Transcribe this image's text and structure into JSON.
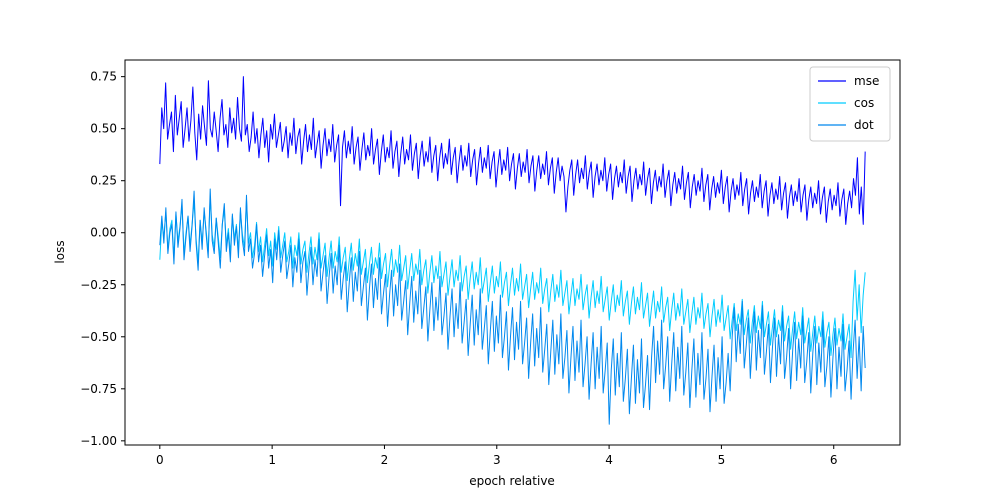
{
  "chart_data": {
    "type": "line",
    "title": "",
    "xlabel": "epoch relative",
    "ylabel": "loss",
    "xlim": [
      -0.31,
      6.59
    ],
    "ylim": [
      -1.02,
      0.83
    ],
    "x_ticks": [
      0,
      1,
      2,
      3,
      4,
      5,
      6
    ],
    "x_tick_labels": [
      "0",
      "1",
      "2",
      "3",
      "4",
      "5",
      "6"
    ],
    "y_ticks": [
      -1.0,
      -0.75,
      -0.5,
      -0.25,
      0.0,
      0.25,
      0.5,
      0.75
    ],
    "y_tick_labels": [
      "−1.00",
      "−0.75",
      "−0.50",
      "−0.25",
      "0.00",
      "0.25",
      "0.50",
      "0.75"
    ],
    "grid": false,
    "legend_position": "top-right",
    "x_range": [
      0,
      6.28
    ],
    "series": [
      {
        "name": "mse",
        "color": "#0000ff",
        "values": [
          0.33,
          0.6,
          0.5,
          0.72,
          0.45,
          0.52,
          0.58,
          0.39,
          0.66,
          0.47,
          0.55,
          0.63,
          0.41,
          0.5,
          0.6,
          0.44,
          0.54,
          0.7,
          0.48,
          0.35,
          0.57,
          0.45,
          0.61,
          0.51,
          0.42,
          0.73,
          0.5,
          0.46,
          0.58,
          0.49,
          0.39,
          0.55,
          0.64,
          0.47,
          0.52,
          0.41,
          0.6,
          0.48,
          0.55,
          0.45,
          0.65,
          0.5,
          0.44,
          0.75,
          0.47,
          0.52,
          0.39,
          0.46,
          0.58,
          0.43,
          0.5,
          0.36,
          0.47,
          0.55,
          0.41,
          0.49,
          0.34,
          0.52,
          0.45,
          0.57,
          0.41,
          0.47,
          0.53,
          0.39,
          0.44,
          0.51,
          0.36,
          0.48,
          0.42,
          0.55,
          0.38,
          0.46,
          0.5,
          0.33,
          0.44,
          0.52,
          0.39,
          0.47,
          0.4,
          0.55,
          0.36,
          0.43,
          0.49,
          0.31,
          0.42,
          0.5,
          0.37,
          0.45,
          0.39,
          0.52,
          0.34,
          0.42,
          0.47,
          0.13,
          0.41,
          0.49,
          0.36,
          0.44,
          0.38,
          0.51,
          0.33,
          0.41,
          0.46,
          0.3,
          0.4,
          0.48,
          0.35,
          0.42,
          0.37,
          0.5,
          0.33,
          0.4,
          0.45,
          0.28,
          0.39,
          0.47,
          0.34,
          0.41,
          0.36,
          0.49,
          0.31,
          0.39,
          0.44,
          0.27,
          0.38,
          0.46,
          0.33,
          0.4,
          0.35,
          0.47,
          0.3,
          0.38,
          0.43,
          0.26,
          0.37,
          0.44,
          0.32,
          0.39,
          0.34,
          0.46,
          0.29,
          0.37,
          0.42,
          0.25,
          0.36,
          0.43,
          0.31,
          0.38,
          0.33,
          0.45,
          0.28,
          0.36,
          0.41,
          0.24,
          0.34,
          0.42,
          0.3,
          0.37,
          0.32,
          0.43,
          0.27,
          0.35,
          0.4,
          0.23,
          0.33,
          0.41,
          0.29,
          0.36,
          0.31,
          0.42,
          0.26,
          0.34,
          0.39,
          0.22,
          0.32,
          0.4,
          0.28,
          0.35,
          0.3,
          0.41,
          0.25,
          0.33,
          0.38,
          0.21,
          0.31,
          0.38,
          0.27,
          0.34,
          0.29,
          0.4,
          0.24,
          0.32,
          0.37,
          0.2,
          0.3,
          0.37,
          0.26,
          0.33,
          0.28,
          0.39,
          0.23,
          0.31,
          0.36,
          0.19,
          0.29,
          0.36,
          0.25,
          0.32,
          0.27,
          0.1,
          0.22,
          0.3,
          0.35,
          0.18,
          0.28,
          0.35,
          0.24,
          0.31,
          0.26,
          0.37,
          0.21,
          0.29,
          0.34,
          0.17,
          0.27,
          0.33,
          0.23,
          0.3,
          0.25,
          0.36,
          0.2,
          0.28,
          0.33,
          0.16,
          0.26,
          0.32,
          0.22,
          0.29,
          0.24,
          0.35,
          0.19,
          0.27,
          0.32,
          0.15,
          0.25,
          0.31,
          0.21,
          0.28,
          0.23,
          0.34,
          0.18,
          0.26,
          0.31,
          0.14,
          0.24,
          0.3,
          0.2,
          0.27,
          0.22,
          0.33,
          0.17,
          0.25,
          0.3,
          0.13,
          0.23,
          0.29,
          0.19,
          0.26,
          0.21,
          0.32,
          0.16,
          0.24,
          0.29,
          0.12,
          0.22,
          0.28,
          0.18,
          0.25,
          0.2,
          0.31,
          0.15,
          0.23,
          0.28,
          0.11,
          0.21,
          0.27,
          0.17,
          0.24,
          0.19,
          0.3,
          0.14,
          0.22,
          0.27,
          0.1,
          0.2,
          0.26,
          0.16,
          0.23,
          0.18,
          0.29,
          0.13,
          0.21,
          0.26,
          0.09,
          0.19,
          0.25,
          0.15,
          0.22,
          0.17,
          0.28,
          0.12,
          0.2,
          0.25,
          0.08,
          0.18,
          0.24,
          0.14,
          0.21,
          0.16,
          0.27,
          0.11,
          0.19,
          0.24,
          0.07,
          0.17,
          0.23,
          0.13,
          0.2,
          0.15,
          0.26,
          0.1,
          0.18,
          0.23,
          0.06,
          0.16,
          0.22,
          0.12,
          0.19,
          0.14,
          0.25,
          0.09,
          0.17,
          0.22,
          0.05,
          0.15,
          0.21,
          0.11,
          0.18,
          0.13,
          0.24,
          0.08,
          0.16,
          0.21,
          0.04,
          0.14,
          0.2,
          0.12,
          0.26,
          0.18,
          0.36,
          0.09,
          0.22,
          0.04,
          0.39
        ]
      },
      {
        "name": "cos",
        "color": "#00ccff",
        "values": [
          -0.13,
          0.05,
          -0.02,
          0.1,
          -0.08,
          0.02,
          0.06,
          -0.12,
          0.09,
          -0.04,
          0.03,
          0.13,
          -0.1,
          0.0,
          0.08,
          -0.06,
          0.04,
          0.15,
          -0.03,
          -0.14,
          0.06,
          -0.05,
          0.1,
          0.01,
          -0.09,
          0.17,
          -0.01,
          -0.07,
          0.07,
          -0.02,
          -0.12,
          0.04,
          0.11,
          -0.06,
          0.02,
          -0.1,
          0.08,
          -0.03,
          0.04,
          -0.08,
          0.1,
          -0.01,
          -0.07,
          0.16,
          -0.05,
          0.0,
          -0.12,
          -0.06,
          0.05,
          -0.09,
          -0.02,
          -0.14,
          -0.06,
          0.02,
          -0.11,
          -0.04,
          -0.16,
          0.0,
          -0.08,
          0.03,
          -0.12,
          -0.06,
          0.0,
          -0.14,
          -0.09,
          -0.02,
          -0.17,
          -0.06,
          -0.11,
          0.0,
          -0.15,
          -0.08,
          -0.04,
          -0.19,
          -0.1,
          -0.02,
          -0.15,
          -0.07,
          -0.13,
          0.0,
          -0.17,
          -0.11,
          -0.05,
          -0.21,
          -0.12,
          -0.04,
          -0.17,
          -0.09,
          -0.14,
          -0.02,
          -0.19,
          -0.12,
          -0.07,
          -0.23,
          -0.13,
          -0.05,
          -0.18,
          -0.1,
          -0.16,
          -0.03,
          -0.2,
          -0.14,
          -0.08,
          -0.24,
          -0.15,
          -0.07,
          -0.2,
          -0.12,
          -0.17,
          -0.05,
          -0.22,
          -0.15,
          -0.1,
          -0.26,
          -0.16,
          -0.08,
          -0.21,
          -0.13,
          -0.19,
          -0.06,
          -0.23,
          -0.17,
          -0.11,
          -0.27,
          -0.18,
          -0.1,
          -0.23,
          -0.15,
          -0.2,
          -0.08,
          -0.25,
          -0.18,
          -0.13,
          -0.29,
          -0.19,
          -0.11,
          -0.24,
          -0.16,
          -0.22,
          -0.09,
          -0.26,
          -0.2,
          -0.14,
          -0.3,
          -0.21,
          -0.13,
          -0.26,
          -0.18,
          -0.23,
          -0.11,
          -0.28,
          -0.21,
          -0.16,
          -0.32,
          -0.22,
          -0.14,
          -0.27,
          -0.19,
          -0.25,
          -0.12,
          -0.29,
          -0.23,
          -0.17,
          -0.33,
          -0.24,
          -0.16,
          -0.29,
          -0.21,
          -0.26,
          -0.14,
          -0.31,
          -0.24,
          -0.19,
          -0.35,
          -0.25,
          -0.17,
          -0.3,
          -0.22,
          -0.28,
          -0.15,
          -0.32,
          -0.26,
          -0.2,
          -0.36,
          -0.27,
          -0.19,
          -0.32,
          -0.24,
          -0.29,
          -0.17,
          -0.34,
          -0.27,
          -0.22,
          -0.38,
          -0.28,
          -0.2,
          -0.33,
          -0.25,
          -0.31,
          -0.18,
          -0.35,
          -0.29,
          -0.23,
          -0.39,
          -0.3,
          -0.22,
          -0.35,
          -0.27,
          -0.32,
          -0.2,
          -0.37,
          -0.3,
          -0.25,
          -0.41,
          -0.31,
          -0.23,
          -0.36,
          -0.28,
          -0.34,
          -0.21,
          -0.38,
          -0.32,
          -0.26,
          -0.42,
          -0.33,
          -0.25,
          -0.38,
          -0.3,
          -0.35,
          -0.23,
          -0.4,
          -0.33,
          -0.28,
          -0.44,
          -0.34,
          -0.26,
          -0.39,
          -0.31,
          -0.37,
          -0.24,
          -0.41,
          -0.35,
          -0.29,
          -0.45,
          -0.36,
          -0.28,
          -0.41,
          -0.33,
          -0.38,
          -0.26,
          -0.43,
          -0.36,
          -0.31,
          -0.47,
          -0.37,
          -0.29,
          -0.42,
          -0.34,
          -0.4,
          -0.27,
          -0.44,
          -0.38,
          -0.32,
          -0.48,
          -0.39,
          -0.31,
          -0.44,
          -0.36,
          -0.41,
          -0.29,
          -0.46,
          -0.39,
          -0.34,
          -0.5,
          -0.4,
          -0.32,
          -0.45,
          -0.37,
          -0.43,
          -0.3,
          -0.47,
          -0.41,
          -0.35,
          -0.51,
          -0.42,
          -0.34,
          -0.47,
          -0.39,
          -0.44,
          -0.32,
          -0.49,
          -0.42,
          -0.37,
          -0.53,
          -0.43,
          -0.35,
          -0.48,
          -0.4,
          -0.46,
          -0.33,
          -0.5,
          -0.44,
          -0.38,
          -0.54,
          -0.45,
          -0.37,
          -0.5,
          -0.42,
          -0.47,
          -0.35,
          -0.52,
          -0.45,
          -0.4,
          -0.56,
          -0.46,
          -0.38,
          -0.51,
          -0.43,
          -0.49,
          -0.36,
          -0.53,
          -0.47,
          -0.41,
          -0.57,
          -0.48,
          -0.4,
          -0.53,
          -0.45,
          -0.5,
          -0.38,
          -0.55,
          -0.48,
          -0.43,
          -0.59,
          -0.49,
          -0.41,
          -0.54,
          -0.46,
          -0.52,
          -0.39,
          -0.56,
          -0.5,
          -0.44,
          -0.6,
          -0.33,
          -0.18,
          -0.42,
          -0.25,
          -0.48,
          -0.3,
          -0.19
        ]
      },
      {
        "name": "dot",
        "color": "#0088ee",
        "values": [
          -0.06,
          0.08,
          -0.05,
          0.12,
          -0.1,
          0.0,
          0.04,
          -0.15,
          0.1,
          -0.07,
          0.02,
          0.16,
          -0.13,
          -0.02,
          0.08,
          -0.09,
          0.03,
          0.2,
          -0.05,
          -0.18,
          0.06,
          -0.08,
          0.12,
          -0.01,
          -0.12,
          0.21,
          -0.04,
          -0.1,
          0.07,
          -0.05,
          -0.17,
          0.04,
          0.14,
          -0.09,
          0.0,
          -0.14,
          0.09,
          -0.06,
          0.03,
          -0.12,
          0.12,
          -0.04,
          -0.11,
          0.18,
          -0.09,
          -0.03,
          -0.17,
          -0.1,
          0.04,
          -0.14,
          -0.06,
          -0.21,
          -0.11,
          -0.01,
          -0.17,
          -0.08,
          -0.24,
          -0.03,
          -0.13,
          0.01,
          -0.19,
          -0.11,
          -0.04,
          -0.22,
          -0.15,
          -0.06,
          -0.26,
          -0.12,
          -0.19,
          -0.03,
          -0.24,
          -0.14,
          -0.09,
          -0.3,
          -0.17,
          -0.07,
          -0.25,
          -0.13,
          -0.21,
          -0.03,
          -0.28,
          -0.19,
          -0.11,
          -0.34,
          -0.21,
          -0.1,
          -0.29,
          -0.16,
          -0.25,
          -0.06,
          -0.32,
          -0.22,
          -0.14,
          -0.38,
          -0.24,
          -0.12,
          -0.33,
          -0.19,
          -0.28,
          -0.09,
          -0.35,
          -0.26,
          -0.17,
          -0.42,
          -0.27,
          -0.15,
          -0.36,
          -0.22,
          -0.32,
          -0.12,
          -0.39,
          -0.29,
          -0.2,
          -0.45,
          -0.3,
          -0.18,
          -0.4,
          -0.25,
          -0.35,
          -0.15,
          -0.42,
          -0.33,
          -0.23,
          -0.49,
          -0.34,
          -0.21,
          -0.43,
          -0.28,
          -0.39,
          -0.18,
          -0.46,
          -0.36,
          -0.26,
          -0.52,
          -0.37,
          -0.24,
          -0.47,
          -0.31,
          -0.42,
          -0.21,
          -0.49,
          -0.4,
          -0.29,
          -0.56,
          -0.4,
          -0.27,
          -0.5,
          -0.34,
          -0.46,
          -0.24,
          -0.53,
          -0.43,
          -0.32,
          -0.59,
          -0.44,
          -0.3,
          -0.54,
          -0.37,
          -0.49,
          -0.27,
          -0.56,
          -0.46,
          -0.35,
          -0.63,
          -0.47,
          -0.33,
          -0.57,
          -0.4,
          -0.53,
          -0.3,
          -0.6,
          -0.5,
          -0.38,
          -0.66,
          -0.5,
          -0.36,
          -0.61,
          -0.43,
          -0.56,
          -0.33,
          -0.63,
          -0.53,
          -0.41,
          -0.7,
          -0.53,
          -0.39,
          -0.64,
          -0.46,
          -0.6,
          -0.36,
          -0.67,
          -0.56,
          -0.44,
          -0.73,
          -0.57,
          -0.42,
          -0.68,
          -0.49,
          -0.63,
          -0.39,
          -0.7,
          -0.6,
          -0.47,
          -0.77,
          -0.6,
          -0.45,
          -0.71,
          -0.52,
          -0.67,
          -0.42,
          -0.74,
          -0.63,
          -0.5,
          -0.8,
          -0.63,
          -0.48,
          -0.75,
          -0.55,
          -0.7,
          -0.45,
          -0.77,
          -0.66,
          -0.53,
          -0.92,
          -0.66,
          -0.51,
          -0.78,
          -0.58,
          -0.74,
          -0.48,
          -0.81,
          -0.7,
          -0.56,
          -0.87,
          -0.7,
          -0.54,
          -0.82,
          -0.61,
          -0.77,
          -0.51,
          -0.84,
          -0.73,
          -0.59,
          -0.85,
          -0.6,
          -0.45,
          -0.72,
          -0.52,
          -0.68,
          -0.42,
          -0.75,
          -0.64,
          -0.5,
          -0.81,
          -0.63,
          -0.48,
          -0.76,
          -0.55,
          -0.7,
          -0.45,
          -0.78,
          -0.67,
          -0.53,
          -0.84,
          -0.66,
          -0.51,
          -0.79,
          -0.58,
          -0.73,
          -0.48,
          -0.8,
          -0.7,
          -0.56,
          -0.86,
          -0.69,
          -0.54,
          -0.81,
          -0.6,
          -0.75,
          -0.5,
          -0.82,
          -0.72,
          -0.58,
          -0.76,
          -0.5,
          -0.36,
          -0.62,
          -0.44,
          -0.58,
          -0.33,
          -0.65,
          -0.54,
          -0.41,
          -0.7,
          -0.52,
          -0.38,
          -0.66,
          -0.47,
          -0.6,
          -0.35,
          -0.68,
          -0.57,
          -0.44,
          -0.72,
          -0.55,
          -0.41,
          -0.69,
          -0.49,
          -0.63,
          -0.38,
          -0.7,
          -0.6,
          -0.46,
          -0.75,
          -0.57,
          -0.43,
          -0.71,
          -0.51,
          -0.65,
          -0.4,
          -0.72,
          -0.62,
          -0.48,
          -0.77,
          -0.58,
          -0.45,
          -0.73,
          -0.53,
          -0.67,
          -0.42,
          -0.74,
          -0.64,
          -0.5,
          -0.79,
          -0.6,
          -0.46,
          -0.75,
          -0.55,
          -0.69,
          -0.44,
          -0.76,
          -0.66,
          -0.52,
          -0.8,
          -0.57,
          -0.42,
          -0.7,
          -0.5,
          -0.76,
          -0.45,
          -0.65
        ]
      }
    ]
  }
}
